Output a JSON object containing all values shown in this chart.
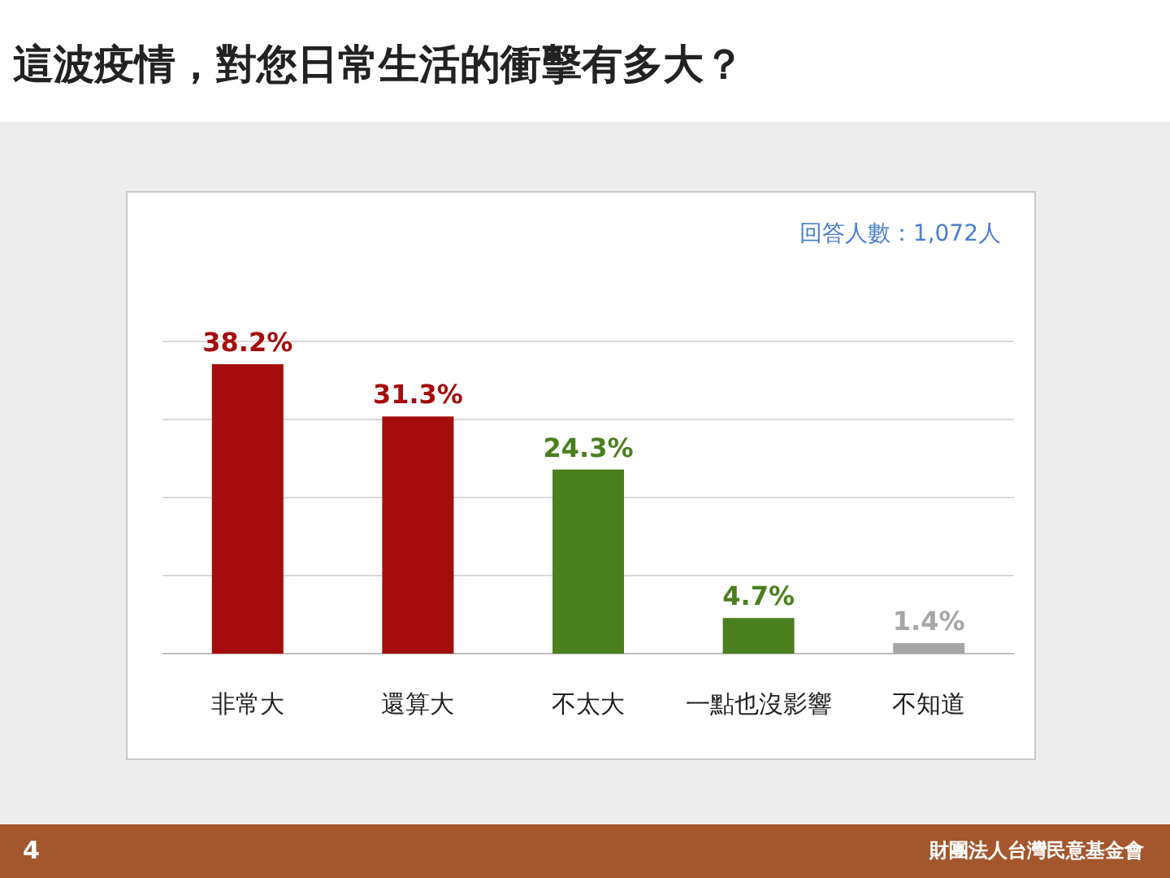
{
  "chart_data": {
    "type": "bar",
    "title": "這波疫情，對您日常生活的衝擊有多大？",
    "categories": [
      "非常大",
      "還算大",
      "不太大",
      "一點也沒影響",
      "不知道"
    ],
    "values": [
      38.2,
      31.3,
      24.3,
      4.7,
      1.4
    ],
    "colors": [
      "#a50d0d",
      "#a50d0d",
      "#4b7f1e",
      "#4b7f1e",
      "#a6a6a6"
    ],
    "value_labels": [
      "38.2%",
      "31.3%",
      "24.3%",
      "4.7%",
      "1.4%"
    ],
    "grid": "y",
    "annotations": [
      "回答人數：1,072人",
      "4",
      "財團法人台灣民意基金會"
    ]
  }
}
